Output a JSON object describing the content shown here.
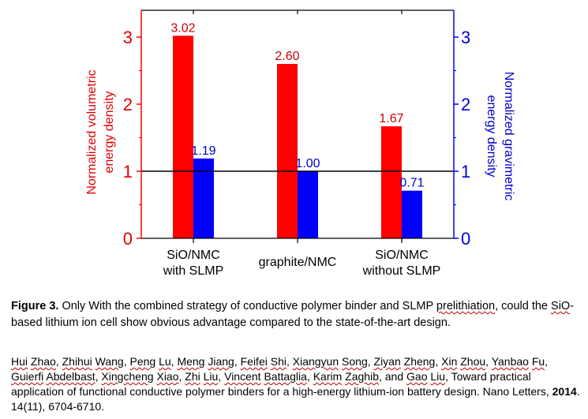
{
  "chart_data": {
    "type": "bar",
    "categories": [
      [
        "SiO/NMC",
        "with SLMP"
      ],
      [
        "graphite/NMC"
      ],
      [
        "SiO/NMC",
        "without SLMP"
      ]
    ],
    "series": [
      {
        "color": "#ff0000",
        "axis": "left",
        "values": [
          3.02,
          2.6,
          1.67
        ],
        "labels": [
          "3.02",
          "2.60",
          "1.67"
        ]
      },
      {
        "color": "#0000ff",
        "axis": "right",
        "values": [
          1.19,
          1.0,
          0.71
        ],
        "labels": [
          "1.19",
          "1.00",
          "0.71"
        ]
      }
    ],
    "ylabel_left": [
      "Normalized volumetric",
      "energy density"
    ],
    "ylabel_right": [
      "Normalized gravimetric",
      "energy density"
    ],
    "ylim": [
      0,
      3.4
    ],
    "yticks": [
      0,
      1,
      2,
      3
    ],
    "reference_line": 1,
    "left_axis_color": "#ff0000",
    "right_axis_color": "#0000ff"
  },
  "caption": {
    "label": "Figure 3.",
    "text_before": " Only With the combined strategy of conductive polymer binder and SLMP ",
    "word_prelithiation": "prelithiation",
    "text_middle": ", could the ",
    "word_sio": "SiO",
    "text_after": "-based lithium ion cell show obvious advantage compared to the state-of-the-art design."
  },
  "citation": {
    "authors": [
      {
        "first": "Hui",
        "last": "Zhao"
      },
      {
        "first": "Zhihui",
        "last": "Wang"
      },
      {
        "first": "Peng",
        "last": "Lu"
      },
      {
        "first": "Meng",
        "last": "Jiang"
      },
      {
        "first": "Feifei",
        "last": "Shi"
      },
      {
        "first": "Xiangyun",
        "last": "Song"
      },
      {
        "first": "Ziyan",
        "last": "Zheng"
      },
      {
        "first": "Xin",
        "last": "Zhou"
      },
      {
        "first": "Yanbao",
        "last": "Fu"
      },
      {
        "first": "Guierfi",
        "last": "Abdelbast"
      },
      {
        "first": "Xingcheng",
        "last": "Xiao"
      },
      {
        "first": "Zhi",
        "last": "Liu"
      },
      {
        "first": "Vincent",
        "last": "Battaglia"
      },
      {
        "first": "Karim",
        "last": "Zaghib"
      },
      {
        "first": "Gao",
        "last": "Liu"
      }
    ],
    "and_word": "and",
    "title": "Toward practical application of functional conductive polymer binders for a high-energy lithium-ion battery design.",
    "journal": "Nano Letters,",
    "year": "2014",
    "details": ". 14(11), 6704-6710."
  }
}
